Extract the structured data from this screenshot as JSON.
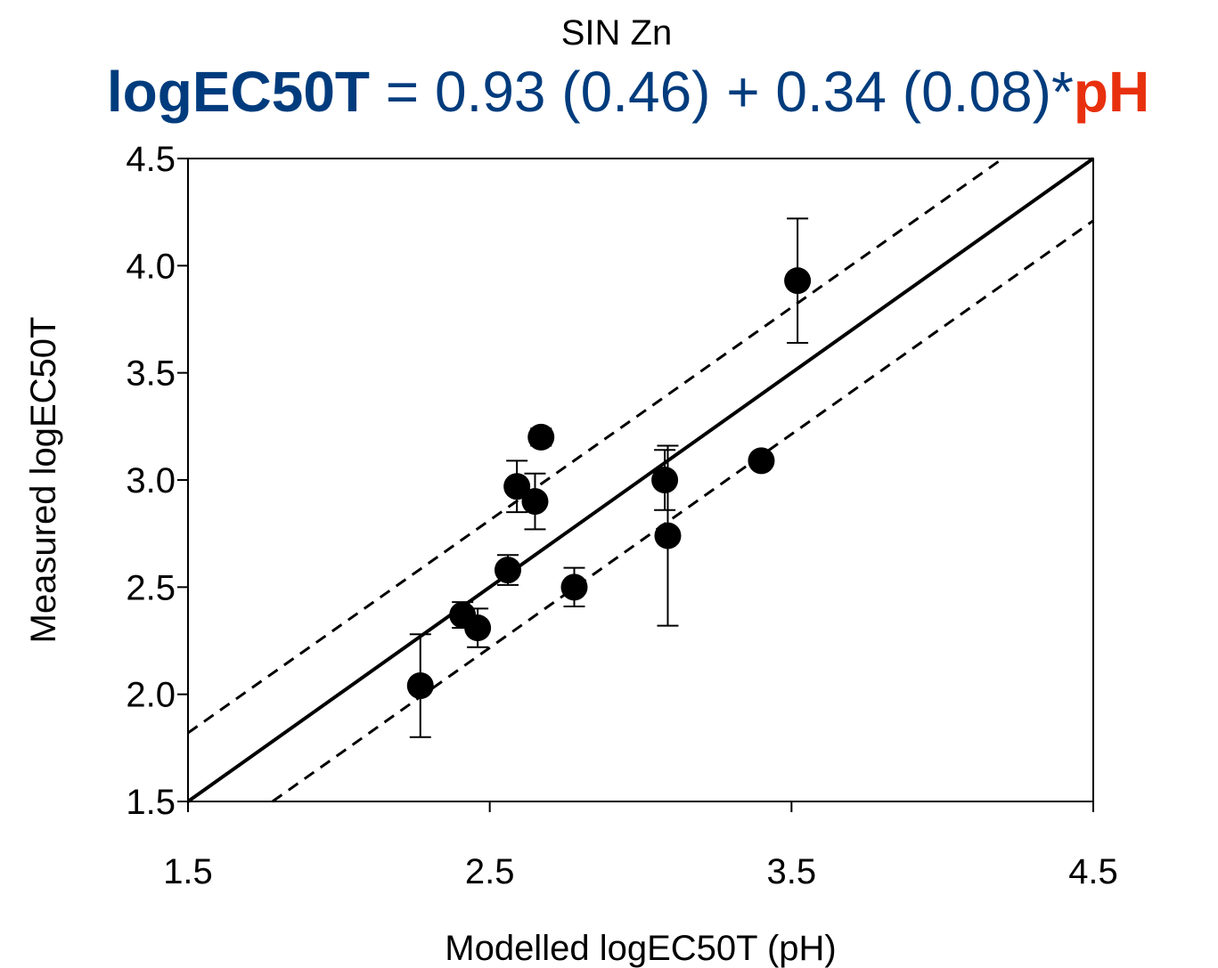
{
  "chart_data": {
    "type": "scatter",
    "title": "SIN Zn",
    "equation": {
      "lhs": "logEC50T",
      "mid": " = 0.93 (0.46) + 0.34 (0.08)*",
      "rhs": "pH",
      "colors": {
        "lhs": "#003c7d",
        "mid": "#003c7d",
        "rhs": "#e8300e"
      }
    },
    "xlabel": "Modelled logEC50T (pH)",
    "ylabel": "Measured logEC50T",
    "xlim": [
      1.5,
      4.5
    ],
    "ylim": [
      1.5,
      4.5
    ],
    "x_ticks": [
      "1.5",
      "2.5",
      "3.5",
      "4.5"
    ],
    "y_ticks": [
      "1.5",
      "2.0",
      "2.5",
      "3.0",
      "3.5",
      "4.0",
      "4.5"
    ],
    "grid": false,
    "reference_lines": {
      "identity": {
        "from": [
          1.5,
          1.5
        ],
        "to": [
          4.5,
          4.5
        ],
        "style": "solid"
      },
      "upper": {
        "from": [
          1.5,
          1.82
        ],
        "to": [
          4.2,
          4.5
        ],
        "style": "dashed"
      },
      "lower": {
        "from": [
          1.78,
          1.5
        ],
        "to": [
          4.5,
          4.21
        ],
        "style": "dashed"
      }
    },
    "points": [
      {
        "x": 2.27,
        "y": 2.04,
        "err": 0.24
      },
      {
        "x": 2.41,
        "y": 2.37,
        "err": 0.06
      },
      {
        "x": 2.46,
        "y": 2.31,
        "err": 0.09
      },
      {
        "x": 2.56,
        "y": 2.58,
        "err": 0.07
      },
      {
        "x": 2.59,
        "y": 2.97,
        "err": 0.12
      },
      {
        "x": 2.65,
        "y": 2.9,
        "err": 0.13
      },
      {
        "x": 2.67,
        "y": 3.2,
        "err": 0.04
      },
      {
        "x": 2.78,
        "y": 2.5,
        "err": 0.09
      },
      {
        "x": 3.08,
        "y": 3.0,
        "err": 0.14
      },
      {
        "x": 3.09,
        "y": 2.74,
        "err": 0.42
      },
      {
        "x": 3.4,
        "y": 3.09,
        "err": 0.02
      },
      {
        "x": 3.52,
        "y": 3.93,
        "err": 0.29
      }
    ],
    "marker_color": "#000000"
  }
}
